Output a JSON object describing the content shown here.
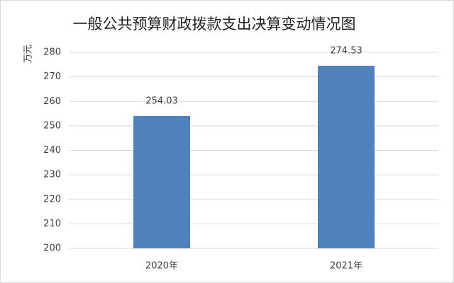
{
  "chart_data": {
    "type": "bar",
    "title": "一般公共预算财政拨款支出决算变动情况图",
    "y_label": "万元",
    "categories": [
      "2020年",
      "2021年"
    ],
    "values": [
      254.03,
      274.53
    ],
    "color": "#4f81bd",
    "ylim": [
      200,
      280
    ],
    "yticks": [
      200,
      210,
      220,
      230,
      240,
      250,
      260,
      270,
      280
    ],
    "grid": true
  }
}
